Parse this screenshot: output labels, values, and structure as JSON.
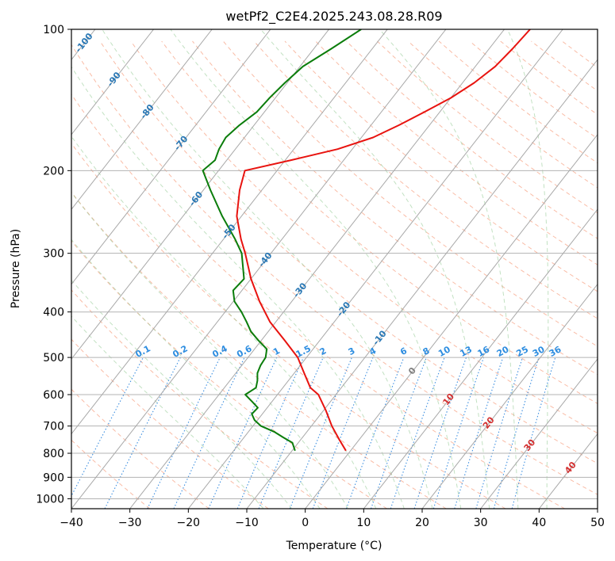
{
  "chart_data": {
    "type": "line",
    "subtype": "skew-t log-p",
    "title": "wetPf2_C2E4.2025.243.08.28.R09",
    "xlabel": "Temperature (°C)",
    "ylabel": "Pressure (hPa)",
    "xlim": [
      -40,
      50
    ],
    "ylim": [
      1050,
      100
    ],
    "x_ticks": [
      -40,
      -30,
      -20,
      -10,
      0,
      10,
      20,
      30,
      40,
      50
    ],
    "x_tick_labels": [
      "−40",
      "−30",
      "−20",
      "−10",
      "0",
      "10",
      "20",
      "30",
      "40",
      "50"
    ],
    "y_ticks": [
      100,
      200,
      300,
      400,
      500,
      600,
      700,
      800,
      900,
      1000
    ],
    "y_tick_labels": [
      "100",
      "200",
      "300",
      "400",
      "500",
      "600",
      "700",
      "800",
      "900",
      "1000"
    ],
    "isotherm_labels": {
      "blue": [
        "-100",
        "-90",
        "-80",
        "-70",
        "-60",
        "-50",
        "-40",
        "-30",
        "-20",
        "-10"
      ],
      "gray": [
        "0"
      ],
      "red": [
        "10",
        "20",
        "30",
        "40"
      ]
    },
    "mixing_ratio_labels": [
      "0.1",
      "0.2",
      "0.4",
      "0.6",
      "1",
      "1.5",
      "2",
      "3",
      "4",
      "6",
      "8",
      "10",
      "13",
      "16",
      "20",
      "25",
      "30",
      "36"
    ],
    "mixing_ratio_values": [
      0.1,
      0.2,
      0.4,
      0.6,
      1,
      1.5,
      2,
      3,
      4,
      6,
      8,
      10,
      13,
      16,
      20,
      25,
      30,
      36
    ],
    "series": [
      {
        "name": "temperature",
        "color": "#e8130f",
        "points": [
          [
            100,
            -25.6
          ],
          [
            110,
            -26.0
          ],
          [
            120,
            -26.6
          ],
          [
            130,
            -28.0
          ],
          [
            140,
            -30.0
          ],
          [
            150,
            -32.6
          ],
          [
            160,
            -35.2
          ],
          [
            170,
            -38.0
          ],
          [
            180,
            -42.5
          ],
          [
            190,
            -49.0
          ],
          [
            200,
            -55.5
          ],
          [
            220,
            -53.8
          ],
          [
            250,
            -50.8
          ],
          [
            280,
            -47.0
          ],
          [
            300,
            -44.4
          ],
          [
            340,
            -40.0
          ],
          [
            380,
            -35.5
          ],
          [
            420,
            -31.0
          ],
          [
            460,
            -26.0
          ],
          [
            500,
            -21.5
          ],
          [
            540,
            -18.3
          ],
          [
            580,
            -15.3
          ],
          [
            600,
            -13.0
          ],
          [
            650,
            -9.5
          ],
          [
            700,
            -6.5
          ],
          [
            750,
            -3.3
          ],
          [
            790,
            -0.8
          ]
        ]
      },
      {
        "name": "dewpoint",
        "color": "#0b7d0b",
        "points": [
          [
            100,
            -54.5
          ],
          [
            110,
            -57.0
          ],
          [
            120,
            -59.5
          ],
          [
            130,
            -60.4
          ],
          [
            140,
            -61.0
          ],
          [
            150,
            -61.3
          ],
          [
            160,
            -62.5
          ],
          [
            170,
            -63.2
          ],
          [
            180,
            -62.8
          ],
          [
            190,
            -62.0
          ],
          [
            200,
            -62.7
          ],
          [
            220,
            -58.8
          ],
          [
            250,
            -53.3
          ],
          [
            280,
            -48.0
          ],
          [
            300,
            -45.0
          ],
          [
            340,
            -41.2
          ],
          [
            360,
            -41.5
          ],
          [
            380,
            -39.8
          ],
          [
            400,
            -37.2
          ],
          [
            420,
            -35.0
          ],
          [
            440,
            -33.0
          ],
          [
            460,
            -30.5
          ],
          [
            480,
            -27.9
          ],
          [
            500,
            -27.0
          ],
          [
            520,
            -26.8
          ],
          [
            540,
            -26.3
          ],
          [
            560,
            -25.3
          ],
          [
            580,
            -24.6
          ],
          [
            600,
            -25.5
          ],
          [
            620,
            -23.5
          ],
          [
            640,
            -21.6
          ],
          [
            660,
            -21.8
          ],
          [
            680,
            -20.5
          ],
          [
            700,
            -18.6
          ],
          [
            720,
            -15.6
          ],
          [
            740,
            -13.3
          ],
          [
            760,
            -11.0
          ],
          [
            790,
            -9.5
          ]
        ]
      }
    ]
  }
}
